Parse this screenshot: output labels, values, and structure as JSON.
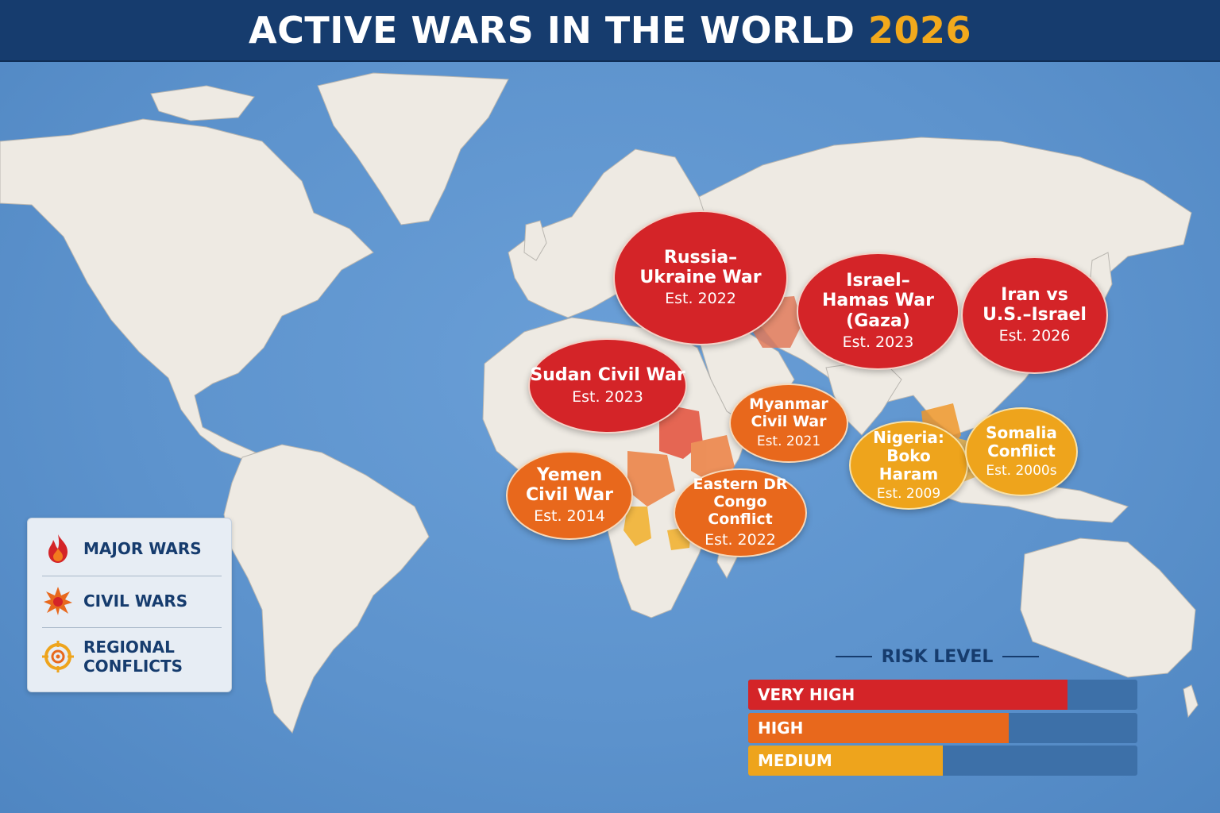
{
  "header": {
    "title": "ACTIVE WARS IN THE WORLD",
    "year": "2026"
  },
  "colors": {
    "ocean": "#5b93cf",
    "land": "#eeeae3",
    "header_bg": "#163c6e",
    "very_high": "#d42428",
    "high": "#e8681c",
    "medium": "#eea41c",
    "accent_year": "#f2a91c"
  },
  "conflicts": [
    {
      "name": "Russia–Ukraine War",
      "established": "Est. 2022",
      "level": "very_high"
    },
    {
      "name": "Israel–Hamas War (Gaza)",
      "established": "Est. 2023",
      "level": "very_high"
    },
    {
      "name": "Iran vs U.S.–Israel",
      "established": "Est. 2026",
      "level": "very_high"
    },
    {
      "name": "Sudan Civil War",
      "established": "Est. 2023",
      "level": "very_high"
    },
    {
      "name": "Myanmar Civil War",
      "established": "Est. 2021",
      "level": "high"
    },
    {
      "name": "Yemen Civil War",
      "established": "Est. 2014",
      "level": "high"
    },
    {
      "name": "Eastern DR Congo Conflict",
      "established": "Est. 2022",
      "level": "high"
    },
    {
      "name": "Nigeria: Boko Haram",
      "established": "Est. 2009",
      "level": "medium"
    },
    {
      "name": "Somalia Conflict",
      "established": "Est. 2000s",
      "level": "medium"
    }
  ],
  "legend": {
    "items": [
      {
        "label": "MAJOR WARS",
        "icon": "flame-icon"
      },
      {
        "label": "CIVIL WARS",
        "icon": "explosion-icon"
      },
      {
        "label": "REGIONAL CONFLICTS",
        "icon": "crosshair-icon"
      }
    ]
  },
  "risk": {
    "title": "RISK LEVEL",
    "levels": [
      {
        "label": "VERY HIGH",
        "fraction": 0.82,
        "color": "#d42428"
      },
      {
        "label": "HIGH",
        "fraction": 0.67,
        "color": "#e8681c"
      },
      {
        "label": "MEDIUM",
        "fraction": 0.5,
        "color": "#eea41c"
      }
    ]
  }
}
